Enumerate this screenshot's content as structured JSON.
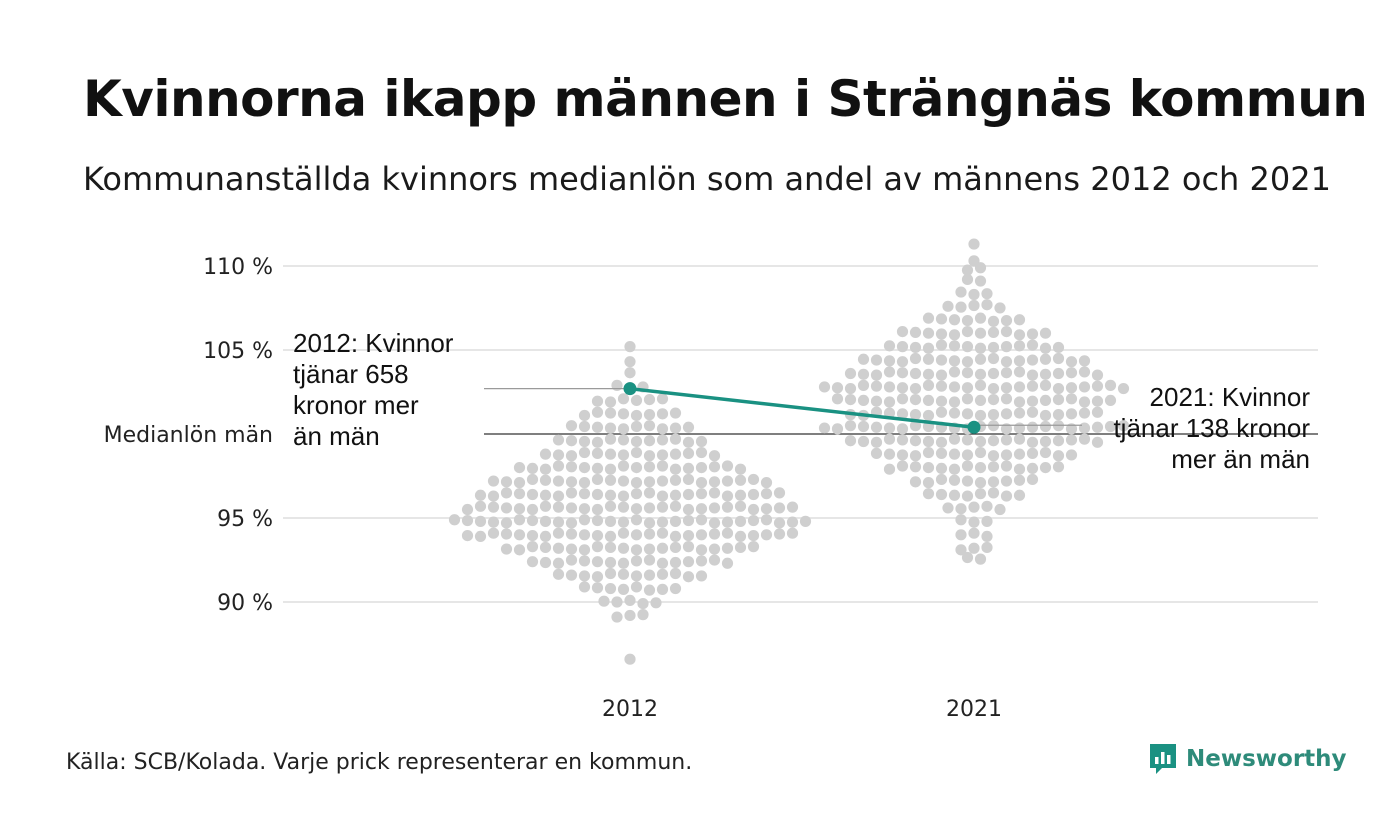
{
  "title": "Kvinnorna ikapp männen i Strängnäs kommun",
  "subtitle": "Kommunanställda kvinnors medianlön som andel av männens 2012 och 2021",
  "source": "Källa: SCB/Kolada. Varje prick representerar en kommun.",
  "brand": "Newsworthy",
  "colors": {
    "accent": "#1a9182",
    "dots": "#cfcfcf",
    "grid": "#e6e6e6",
    "reference": "#333333"
  },
  "chart_data": {
    "type": "scatter",
    "categories": [
      "2012",
      "2021"
    ],
    "y_ticks": [
      {
        "value": 90,
        "label": "90 %"
      },
      {
        "value": 95,
        "label": "95 %"
      },
      {
        "value": 100,
        "label": "Medianlön män"
      },
      {
        "value": 105,
        "label": "105 %"
      },
      {
        "value": 110,
        "label": "110 %"
      }
    ],
    "ylim": [
      86,
      111.5
    ],
    "distribution": {
      "2012": {
        "bins": [
          [
            105.2,
            1
          ],
          [
            104.4,
            1
          ],
          [
            103.6,
            1
          ],
          [
            102.8,
            3
          ],
          [
            102.0,
            6
          ],
          [
            101.2,
            8
          ],
          [
            100.4,
            10
          ],
          [
            99.6,
            12
          ],
          [
            98.8,
            14
          ],
          [
            98.0,
            18
          ],
          [
            97.2,
            22
          ],
          [
            96.4,
            24
          ],
          [
            95.6,
            26
          ],
          [
            94.8,
            28
          ],
          [
            94.0,
            26
          ],
          [
            93.2,
            20
          ],
          [
            92.4,
            16
          ],
          [
            91.6,
            12
          ],
          [
            90.8,
            8
          ],
          [
            90.0,
            5
          ],
          [
            89.2,
            3
          ],
          [
            86.5,
            1
          ]
        ]
      },
      "2021": {
        "bins": [
          [
            111.4,
            1
          ],
          [
            110.4,
            1
          ],
          [
            109.8,
            2
          ],
          [
            109.2,
            2
          ],
          [
            108.4,
            3
          ],
          [
            107.6,
            5
          ],
          [
            106.8,
            8
          ],
          [
            106.0,
            12
          ],
          [
            105.2,
            14
          ],
          [
            104.4,
            18
          ],
          [
            103.6,
            20
          ],
          [
            102.8,
            24
          ],
          [
            102.0,
            22
          ],
          [
            101.2,
            20
          ],
          [
            100.4,
            24
          ],
          [
            99.6,
            20
          ],
          [
            98.8,
            16
          ],
          [
            98.0,
            14
          ],
          [
            97.2,
            10
          ],
          [
            96.4,
            8
          ],
          [
            95.6,
            5
          ],
          [
            94.8,
            3
          ],
          [
            94.0,
            3
          ],
          [
            93.2,
            3
          ],
          [
            92.6,
            2
          ]
        ]
      }
    },
    "series": [
      {
        "name": "Strängnäs",
        "x": [
          "2012",
          "2021"
        ],
        "values": [
          102.7,
          100.4
        ]
      }
    ],
    "annotations": [
      {
        "lines": [
          "2012: Kvinnor",
          "tjänar 658",
          "kronor mer",
          "än män"
        ]
      },
      {
        "lines": [
          "2021: Kvinnor",
          "tjänar 138 kronor",
          "mer än män"
        ]
      }
    ],
    "grid": true,
    "legend": "none"
  }
}
